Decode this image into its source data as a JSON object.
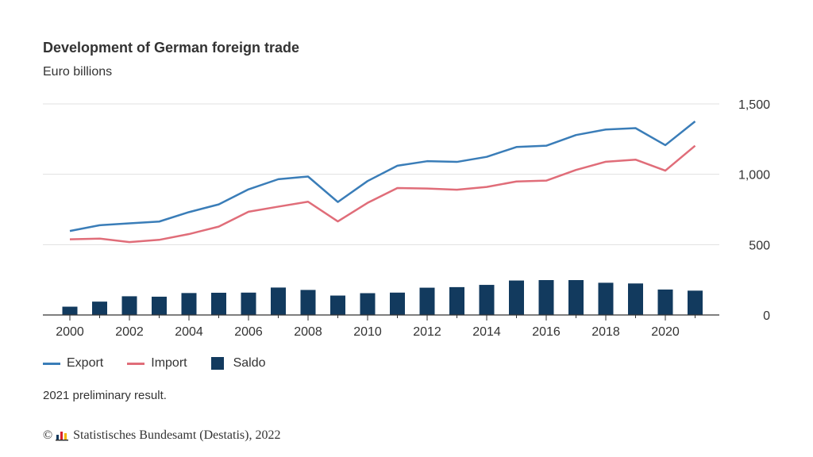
{
  "colors": {
    "export": "#3a7db8",
    "import": "#e06d79",
    "saldo": "#123a5e",
    "grid": "#e0e0e0",
    "axis": "#333333"
  },
  "chart_data": {
    "type": "line",
    "title": "Development of German foreign trade",
    "ylabel": "Euro billions",
    "x": [
      2000,
      2001,
      2002,
      2003,
      2004,
      2005,
      2006,
      2007,
      2008,
      2009,
      2010,
      2011,
      2012,
      2013,
      2014,
      2015,
      2016,
      2017,
      2018,
      2019,
      2020,
      2021
    ],
    "x_tick_labels": [
      "2000",
      "2002",
      "2004",
      "2006",
      "2008",
      "2010",
      "2012",
      "2014",
      "2016",
      "2018",
      "2020"
    ],
    "y_tick_labels": [
      "0",
      "500",
      "1,000",
      "1,500"
    ],
    "ylim": [
      0,
      1500
    ],
    "y_ticks": [
      0,
      500,
      1000,
      1500
    ],
    "grid": true,
    "y_axis_position": "right",
    "legend_position": "bottom-left",
    "series": [
      {
        "name": "Export",
        "type": "line",
        "color_key": "export",
        "values": [
          597,
          638,
          651,
          664,
          731,
          786,
          893,
          965,
          984,
          803,
          952,
          1061,
          1093,
          1088,
          1124,
          1194,
          1203,
          1279,
          1318,
          1328,
          1207,
          1376
        ]
      },
      {
        "name": "Import",
        "type": "line",
        "color_key": "import",
        "values": [
          538,
          543,
          518,
          534,
          575,
          628,
          734,
          770,
          805,
          665,
          797,
          902,
          899,
          890,
          910,
          949,
          955,
          1031,
          1089,
          1104,
          1026,
          1203
        ]
      },
      {
        "name": "Saldo",
        "type": "bar",
        "color_key": "saldo",
        "values": [
          59,
          95,
          133,
          130,
          156,
          158,
          159,
          195,
          178,
          138,
          155,
          159,
          194,
          198,
          214,
          245,
          248,
          248,
          229,
          224,
          181,
          173
        ]
      }
    ]
  },
  "legend": {
    "export": "Export",
    "import": "Import",
    "saldo": "Saldo"
  },
  "note": "2021 preliminary result.",
  "footer": {
    "copyright_symbol": "©",
    "source": "Statistisches Bundesamt (Destatis), 2022"
  }
}
